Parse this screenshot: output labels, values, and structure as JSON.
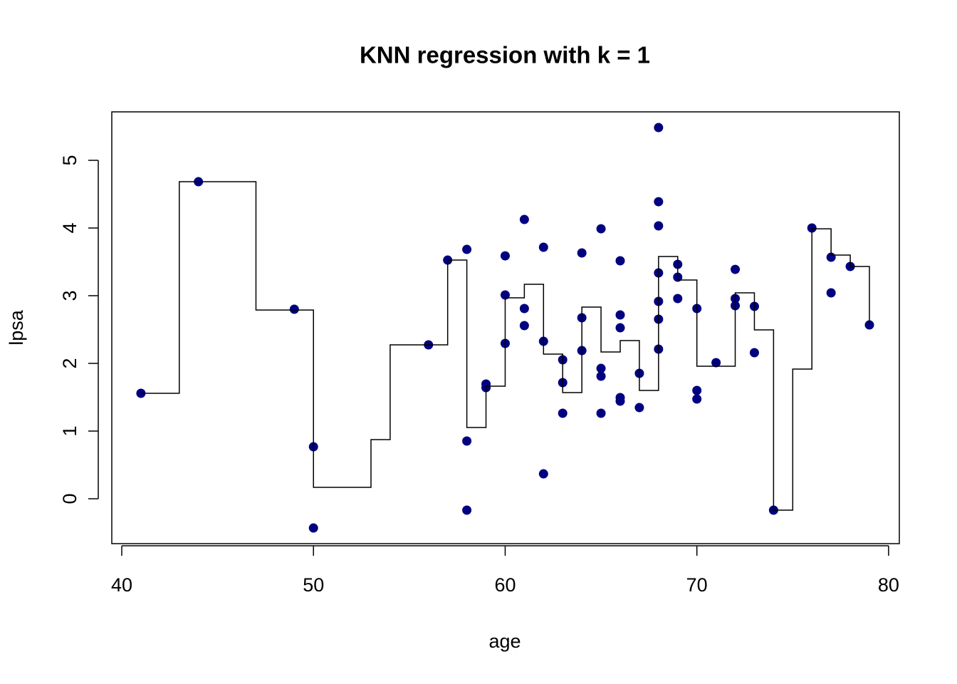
{
  "chart_data": {
    "type": "scatter",
    "title": "KNN regression with k = 1",
    "x_label": "age",
    "y_label": "lpsa",
    "xlim": [
      39.48,
      80.56
    ],
    "ylim": [
      -0.663,
      5.716
    ],
    "xticks": [
      40,
      50,
      60,
      70,
      80
    ],
    "yticks": [
      0,
      1,
      2,
      3,
      4,
      5
    ],
    "grid": false,
    "series": [
      {
        "mode": "points",
        "color": "#000080",
        "x": [
          41,
          44,
          49,
          50,
          50,
          56,
          57,
          58,
          58,
          58,
          59,
          59,
          60,
          60,
          60,
          61,
          61,
          61,
          62,
          62,
          62,
          63,
          63,
          63,
          64,
          64,
          64,
          65,
          65,
          65,
          65,
          66,
          66,
          66,
          66,
          66,
          67,
          67,
          68,
          68,
          68,
          68,
          68,
          68,
          68,
          69,
          69,
          69,
          70,
          70,
          70,
          71,
          72,
          72,
          72,
          73,
          73,
          74,
          76,
          77,
          77,
          78,
          79
        ],
        "values": [
          1.558,
          4.684,
          2.8,
          0.768,
          -0.432,
          2.274,
          3.526,
          3.684,
          0.853,
          -0.168,
          1.695,
          1.642,
          3.589,
          3.011,
          2.295,
          4.126,
          2.811,
          2.558,
          3.716,
          2.326,
          0.368,
          2.053,
          1.716,
          1.263,
          3.632,
          2.674,
          2.189,
          3.989,
          1.926,
          1.811,
          1.263,
          3.516,
          2.716,
          2.526,
          1.495,
          1.442,
          1.853,
          1.347,
          5.484,
          4.389,
          4.032,
          3.337,
          2.916,
          2.653,
          2.211,
          3.463,
          3.274,
          2.958,
          2.811,
          1.6,
          1.474,
          2.011,
          3.389,
          2.958,
          2.853,
          2.842,
          2.158,
          -0.168,
          4.0,
          3.568,
          3.042,
          3.432,
          2.568
        ]
      },
      {
        "mode": "line",
        "color": "#000000",
        "x": [
          41,
          43,
          43,
          47,
          47,
          50,
          50,
          53,
          53,
          54,
          54,
          57,
          57,
          58,
          58,
          59,
          59,
          60,
          60,
          61,
          61,
          62,
          62,
          63,
          63,
          64,
          64,
          65,
          65,
          66,
          66,
          67,
          67,
          68,
          68,
          69,
          69,
          70,
          70,
          72,
          72,
          73,
          73,
          74,
          74,
          75,
          75,
          76,
          76,
          77,
          77,
          78,
          78,
          79,
          79
        ],
        "values": [
          1.558,
          1.558,
          4.684,
          4.684,
          2.789,
          2.789,
          0.168,
          0.168,
          0.874,
          0.874,
          2.274,
          2.274,
          3.526,
          3.526,
          1.053,
          1.053,
          1.663,
          1.663,
          2.968,
          2.968,
          3.168,
          3.168,
          2.137,
          2.137,
          1.568,
          1.568,
          2.832,
          2.832,
          2.168,
          2.168,
          2.337,
          2.337,
          1.6,
          1.6,
          3.579,
          3.579,
          3.232,
          3.232,
          1.958,
          1.958,
          3.042,
          3.042,
          2.495,
          2.495,
          -0.168,
          -0.168,
          1.916,
          1.916,
          3.989,
          3.989,
          3.6,
          3.6,
          3.432,
          3.432,
          2.568
        ]
      }
    ]
  }
}
